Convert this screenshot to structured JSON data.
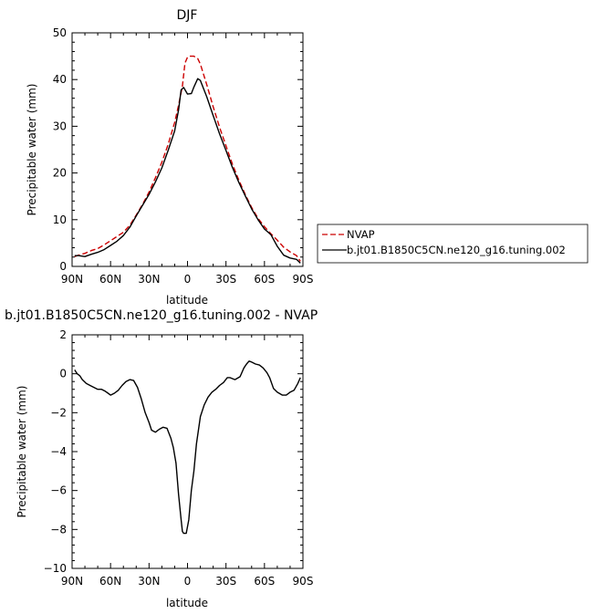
{
  "chart_data": [
    {
      "type": "line",
      "title": "DJF",
      "xlabel": "latitude",
      "ylabel": "Precipitable water (mm)",
      "xlim": [
        -90,
        90
      ],
      "ylim": [
        0,
        50
      ],
      "x_ticks": [
        -90,
        -60,
        -30,
        0,
        30,
        60,
        90
      ],
      "x_tick_labels": [
        "90N",
        "60N",
        "30N",
        "0",
        "30S",
        "60S",
        "90S"
      ],
      "y_ticks": [
        0,
        10,
        20,
        30,
        40,
        50
      ],
      "y_tick_labels": [
        "0",
        "10",
        "20",
        "30",
        "40",
        "50"
      ],
      "legend_position": "right",
      "series": [
        {
          "name": "NVAP",
          "color": "#cc0000",
          "dash": "dashed",
          "x": [
            -88,
            -85,
            -80,
            -75,
            -70,
            -65,
            -60,
            -55,
            -50,
            -45,
            -40,
            -35,
            -30,
            -25,
            -20,
            -15,
            -10,
            -7,
            -4,
            -2,
            0,
            2,
            5,
            8,
            10,
            15,
            20,
            25,
            30,
            35,
            40,
            45,
            50,
            55,
            60,
            65,
            70,
            75,
            80,
            85,
            88
          ],
          "y": [
            2.1,
            2.4,
            2.8,
            3.4,
            3.8,
            4.6,
            5.5,
            6.4,
            7.3,
            8.8,
            11.0,
            13.3,
            15.9,
            19.0,
            22.3,
            26.2,
            30.8,
            34.5,
            38.6,
            43.5,
            44.8,
            45.0,
            45.0,
            44.5,
            43.3,
            38.9,
            34.2,
            29.8,
            25.8,
            21.9,
            18.5,
            15.4,
            12.6,
            10.3,
            8.5,
            7.0,
            5.6,
            4.1,
            3.1,
            2.3,
            1.1
          ]
        },
        {
          "name": "b.jt01.B1850C5CN.ne120_g16.tuning.002",
          "color": "#000000",
          "dash": "solid",
          "x": [
            -88,
            -85,
            -80,
            -75,
            -70,
            -65,
            -60,
            -55,
            -50,
            -45,
            -40,
            -35,
            -30,
            -25,
            -20,
            -15,
            -10,
            -7,
            -5,
            -3,
            0,
            3,
            5,
            8,
            10,
            15,
            20,
            25,
            30,
            35,
            40,
            45,
            50,
            55,
            60,
            65,
            70,
            75,
            80,
            85,
            88
          ],
          "y": [
            2.3,
            2.3,
            2.1,
            2.6,
            3.0,
            3.6,
            4.5,
            5.4,
            6.6,
            8.4,
            10.8,
            13.1,
            15.4,
            18.1,
            21.1,
            24.9,
            29.0,
            33.5,
            37.8,
            38.3,
            36.9,
            37.0,
            38.4,
            40.2,
            39.8,
            36.3,
            32.3,
            28.4,
            24.8,
            21.2,
            18.0,
            15.1,
            12.3,
            10.0,
            8.0,
            6.8,
            4.3,
            2.4,
            1.8,
            1.5,
            0.7
          ]
        }
      ]
    },
    {
      "type": "line",
      "title": "b.jt01.B1850C5CN.ne120_g16.tuning.002 - NVAP",
      "xlabel": "latitude",
      "ylabel": "Precipitable water (mm)",
      "xlim": [
        -90,
        90
      ],
      "ylim": [
        -10,
        2
      ],
      "x_ticks": [
        -90,
        -60,
        -30,
        0,
        30,
        60,
        90
      ],
      "x_tick_labels": [
        "90N",
        "60N",
        "30N",
        "0",
        "30S",
        "60S",
        "90S"
      ],
      "y_ticks": [
        -10,
        -8,
        -6,
        -4,
        -2,
        0,
        2
      ],
      "y_tick_labels": [
        "−10",
        "−8",
        "−6",
        "−4",
        "−2",
        "0",
        "2"
      ],
      "series": [
        {
          "color": "#000000",
          "dash": "solid",
          "x": [
            -88,
            -86,
            -84,
            -82,
            -79,
            -76,
            -73,
            -70,
            -67,
            -64,
            -62,
            -60,
            -57,
            -54,
            -51,
            -48,
            -45,
            -42,
            -39,
            -36,
            -33,
            -30,
            -28,
            -25,
            -22,
            -19,
            -16,
            -13,
            -11,
            -9,
            -7,
            -5,
            -4,
            -3,
            -1,
            1,
            3,
            5,
            7,
            10,
            13,
            16,
            19,
            22,
            25,
            28,
            31,
            33,
            37,
            41,
            44,
            46,
            48,
            50,
            53,
            56,
            59,
            62,
            64,
            67,
            70,
            74,
            77,
            80,
            83,
            86,
            88
          ],
          "y": [
            0.2,
            0.0,
            -0.1,
            -0.3,
            -0.5,
            -0.6,
            -0.7,
            -0.8,
            -0.8,
            -0.9,
            -1.0,
            -1.1,
            -1.0,
            -0.85,
            -0.6,
            -0.4,
            -0.3,
            -0.35,
            -0.7,
            -1.3,
            -2.0,
            -2.5,
            -2.9,
            -3.0,
            -2.85,
            -2.75,
            -2.8,
            -3.3,
            -3.8,
            -4.6,
            -6.2,
            -7.5,
            -8.1,
            -8.2,
            -8.2,
            -7.5,
            -6.0,
            -5.0,
            -3.6,
            -2.2,
            -1.6,
            -1.2,
            -0.95,
            -0.8,
            -0.6,
            -0.45,
            -0.2,
            -0.2,
            -0.3,
            -0.15,
            0.3,
            0.5,
            0.65,
            0.6,
            0.5,
            0.45,
            0.3,
            0.05,
            -0.2,
            -0.75,
            -0.95,
            -1.1,
            -1.1,
            -0.95,
            -0.85,
            -0.5,
            -0.2
          ]
        }
      ]
    }
  ]
}
